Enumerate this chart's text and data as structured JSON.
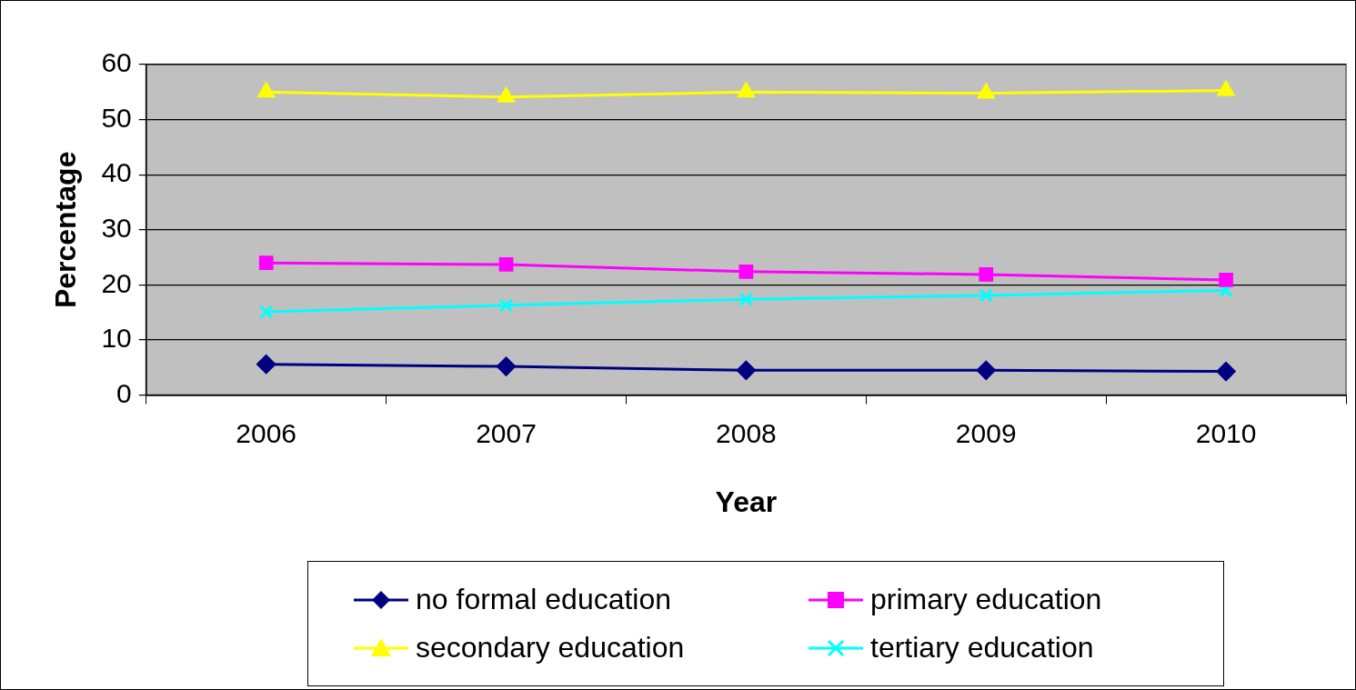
{
  "chart_data": {
    "type": "line",
    "xlabel": "Year",
    "ylabel": "Percentage",
    "categories": [
      "2006",
      "2007",
      "2008",
      "2009",
      "2010"
    ],
    "series": [
      {
        "name": "no formal education",
        "color": "#000080",
        "marker": "diamond",
        "values": [
          5.6,
          5.2,
          4.5,
          4.5,
          4.3
        ]
      },
      {
        "name": "primary education",
        "color": "#ff00ff",
        "marker": "square",
        "values": [
          24.0,
          23.7,
          22.4,
          21.9,
          20.9
        ]
      },
      {
        "name": "secondary education",
        "color": "#ffff00",
        "marker": "triangle",
        "values": [
          55.0,
          54.1,
          55.0,
          54.8,
          55.3
        ]
      },
      {
        "name": "tertiary education",
        "color": "#00ffff",
        "marker": "cross",
        "values": [
          15.1,
          16.3,
          17.4,
          18.1,
          19.0
        ]
      }
    ],
    "ylim": [
      0,
      60
    ],
    "yticks": [
      0,
      10,
      20,
      30,
      40,
      50,
      60
    ],
    "grid": "y",
    "legend": "bottom",
    "line_style": "solid"
  }
}
